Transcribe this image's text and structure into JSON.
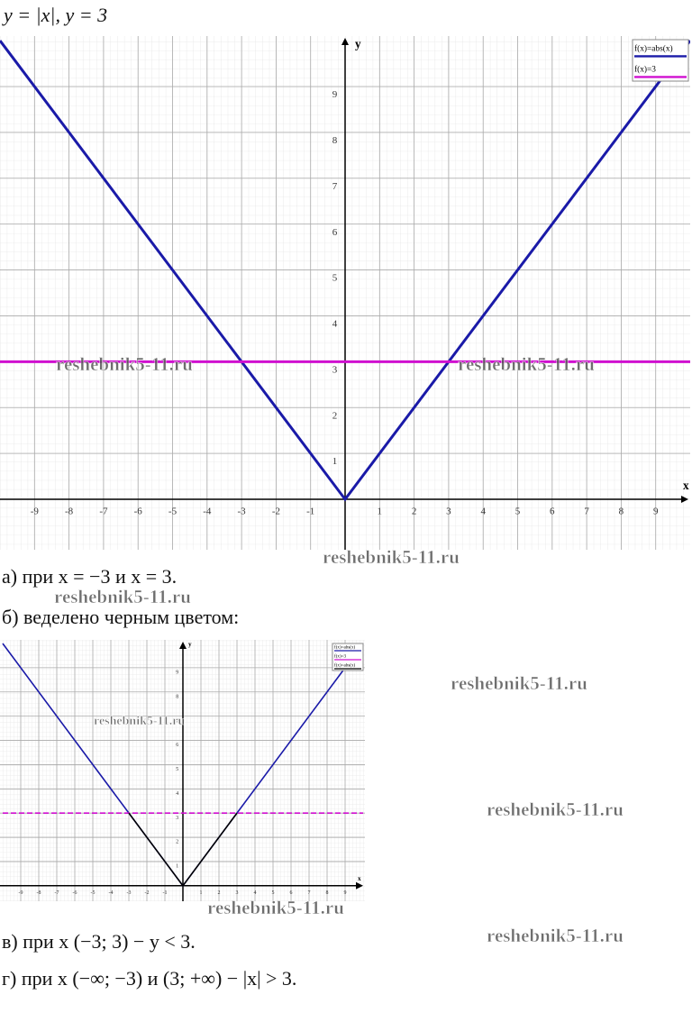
{
  "header": "y = |x|,        y = 3",
  "chart_data": [
    {
      "type": "line",
      "x_label": "x",
      "y_label": "y",
      "xlim": [
        -10,
        10
      ],
      "ylim": [
        -1.1,
        10.1
      ],
      "xticks": [
        -9,
        -8,
        -7,
        -6,
        -5,
        -4,
        -3,
        -2,
        -1,
        1,
        2,
        3,
        4,
        5,
        6,
        7,
        8,
        9
      ],
      "yticks": [
        1,
        2,
        3,
        4,
        5,
        6,
        7,
        8,
        9
      ],
      "grid": true,
      "legend": "upper right",
      "series": [
        {
          "name": "f(x)=abs(x)",
          "color": "#1a1aa8",
          "x": [
            -10,
            0,
            10
          ],
          "values": [
            10,
            0,
            10
          ],
          "style": "solid"
        },
        {
          "name": "f(x)=3",
          "color": "#d010d0",
          "x": [
            -10,
            10
          ],
          "values": [
            3,
            3
          ],
          "style": "solid"
        }
      ]
    },
    {
      "type": "line",
      "x_label": "x",
      "y_label": "y",
      "xlim": [
        -10.15,
        10.1
      ],
      "ylim": [
        -0.64,
        10.15
      ],
      "xticks": [
        -9,
        -8,
        -7,
        -6,
        -5,
        -4,
        -3,
        -2,
        -1,
        1,
        2,
        3,
        4,
        5,
        6,
        7,
        8,
        9
      ],
      "yticks": [
        1,
        2,
        3,
        4,
        5,
        6,
        7,
        8,
        9
      ],
      "grid": true,
      "legend": "upper right",
      "series": [
        {
          "name": "f(x)=abs(x)",
          "color": "#1a1aa8",
          "x": [
            -10,
            0,
            10
          ],
          "values": [
            10,
            0,
            10
          ],
          "style": "solid"
        },
        {
          "name": "f(x)=3",
          "color": "#d010d0",
          "x": [
            -10,
            10
          ],
          "values": [
            3,
            3
          ],
          "style": "dashed"
        },
        {
          "name": "f(x)=abs(x)",
          "color": "#000000",
          "x": [
            -3,
            0,
            3
          ],
          "values": [
            3,
            0,
            3
          ],
          "style": "solid"
        }
      ]
    }
  ],
  "answers": [
    "а) при x = −3 и x = 3.",
    "б) веделено черным цветом:",
    "в) при x (−3; 3) − y < 3.",
    "г) при x (−∞; −3) и (3; +∞) − |x| > 3."
  ],
  "watermarks": [
    "reshebnik5-11.ru",
    "reshebnik5-11.ru",
    "reshebnik5-11.ru",
    "reshebnik5-11.ru",
    "reshebnik5-11.ru",
    "reshebnik5-11.ru",
    "reshebnik5-11.ru",
    "reshebnik5-11.ru",
    "reshebnik5-11.ru"
  ]
}
